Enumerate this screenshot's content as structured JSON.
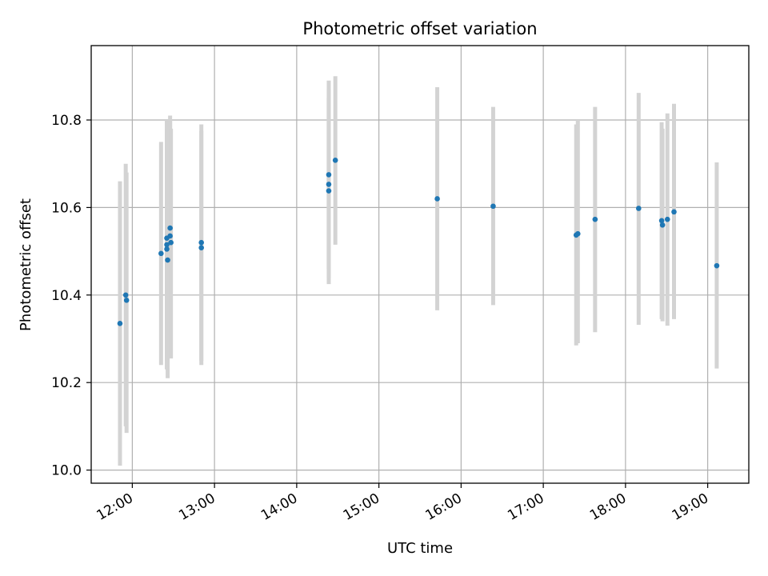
{
  "chart_data": {
    "type": "scatter",
    "title": "Photometric offset variation",
    "xlabel": "UTC time",
    "ylabel": "Photometric offset",
    "x_unit": "hour",
    "xlim": [
      11.5,
      19.5
    ],
    "ylim": [
      9.97,
      10.97
    ],
    "x_ticks": [
      12,
      13,
      14,
      15,
      16,
      17,
      18,
      19
    ],
    "x_tick_labels": [
      "12:00",
      "13:00",
      "14:00",
      "15:00",
      "16:00",
      "17:00",
      "18:00",
      "19:00"
    ],
    "y_ticks": [
      10.0,
      10.2,
      10.4,
      10.6,
      10.8
    ],
    "y_tick_labels": [
      "10.0",
      "10.2",
      "10.4",
      "10.6",
      "10.8"
    ],
    "grid": true,
    "series": [
      {
        "color": "#1f77b4",
        "error_color": "#d3d3d3",
        "points": [
          {
            "x": 11.85,
            "y": 10.335,
            "lo": 10.01,
            "hi": 10.66
          },
          {
            "x": 11.92,
            "y": 10.4,
            "lo": 10.1,
            "hi": 10.7
          },
          {
            "x": 11.93,
            "y": 10.388,
            "lo": 10.085,
            "hi": 10.68
          },
          {
            "x": 12.35,
            "y": 10.495,
            "lo": 10.24,
            "hi": 10.75
          },
          {
            "x": 12.42,
            "y": 10.53,
            "lo": 10.27,
            "hi": 10.8
          },
          {
            "x": 12.42,
            "y": 10.515,
            "lo": 10.25,
            "hi": 10.78
          },
          {
            "x": 12.42,
            "y": 10.505,
            "lo": 10.23,
            "hi": 10.77
          },
          {
            "x": 12.43,
            "y": 10.48,
            "lo": 10.21,
            "hi": 10.75
          },
          {
            "x": 12.46,
            "y": 10.553,
            "lo": 10.29,
            "hi": 10.81
          },
          {
            "x": 12.46,
            "y": 10.535,
            "lo": 10.27,
            "hi": 10.8
          },
          {
            "x": 12.47,
            "y": 10.52,
            "lo": 10.255,
            "hi": 10.78
          },
          {
            "x": 12.84,
            "y": 10.52,
            "lo": 10.25,
            "hi": 10.79
          },
          {
            "x": 12.84,
            "y": 10.508,
            "lo": 10.24,
            "hi": 10.775
          },
          {
            "x": 14.39,
            "y": 10.675,
            "lo": 10.46,
            "hi": 10.89
          },
          {
            "x": 14.39,
            "y": 10.653,
            "lo": 10.44,
            "hi": 10.87
          },
          {
            "x": 14.39,
            "y": 10.638,
            "lo": 10.425,
            "hi": 10.85
          },
          {
            "x": 14.47,
            "y": 10.708,
            "lo": 10.515,
            "hi": 10.9
          },
          {
            "x": 15.71,
            "y": 10.62,
            "lo": 10.365,
            "hi": 10.875
          },
          {
            "x": 16.39,
            "y": 10.603,
            "lo": 10.377,
            "hi": 10.83
          },
          {
            "x": 17.4,
            "y": 10.537,
            "lo": 10.285,
            "hi": 10.79
          },
          {
            "x": 17.42,
            "y": 10.54,
            "lo": 10.29,
            "hi": 10.8
          },
          {
            "x": 17.63,
            "y": 10.573,
            "lo": 10.315,
            "hi": 10.83
          },
          {
            "x": 18.16,
            "y": 10.598,
            "lo": 10.332,
            "hi": 10.862
          },
          {
            "x": 18.44,
            "y": 10.57,
            "lo": 10.345,
            "hi": 10.795
          },
          {
            "x": 18.45,
            "y": 10.56,
            "lo": 10.34,
            "hi": 10.78
          },
          {
            "x": 18.51,
            "y": 10.573,
            "lo": 10.33,
            "hi": 10.815
          },
          {
            "x": 18.59,
            "y": 10.59,
            "lo": 10.345,
            "hi": 10.837
          },
          {
            "x": 19.11,
            "y": 10.467,
            "lo": 10.232,
            "hi": 10.703
          }
        ]
      }
    ]
  }
}
